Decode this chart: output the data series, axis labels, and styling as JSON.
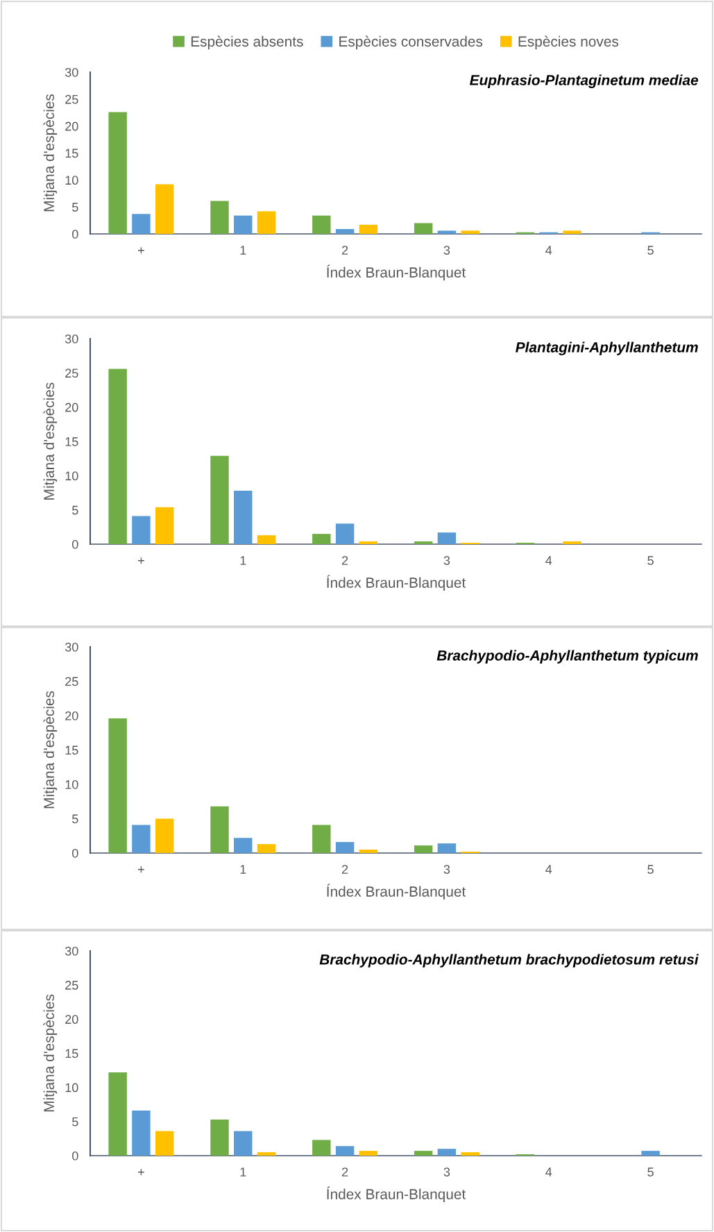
{
  "chart_data": [
    {
      "type": "bar",
      "title": "Euphrasio-Plantaginetum mediae",
      "xlabel": "Índex Braun-Blanquet",
      "ylabel": "Mitjana d'espècies",
      "categories": [
        "+",
        "1",
        "2",
        "3",
        "4",
        "5"
      ],
      "ylim": [
        0,
        30
      ],
      "yticks": [
        0,
        5,
        10,
        15,
        20,
        25,
        30
      ],
      "legend": "top",
      "series": [
        {
          "name": "Espècies absents",
          "color": "#70ad47",
          "values": [
            22.6,
            6.1,
            3.4,
            2.0,
            0.3,
            0.0
          ]
        },
        {
          "name": "Espècies conservades",
          "color": "#5b9bd5",
          "values": [
            3.7,
            3.4,
            0.9,
            0.6,
            0.3,
            0.3
          ]
        },
        {
          "name": "Espècies noves",
          "color": "#ffc000",
          "values": [
            9.2,
            4.2,
            1.7,
            0.6,
            0.6,
            0.0
          ]
        }
      ]
    },
    {
      "type": "bar",
      "title": "Plantagini-Aphyllanthetum",
      "xlabel": "Índex Braun-Blanquet",
      "ylabel": "Mitjana d'espècies",
      "categories": [
        "+",
        "1",
        "2",
        "3",
        "4",
        "5"
      ],
      "ylim": [
        0,
        30
      ],
      "yticks": [
        0,
        5,
        10,
        15,
        20,
        25,
        30
      ],
      "series": [
        {
          "color": "#70ad47",
          "values": [
            25.6,
            12.9,
            1.5,
            0.4,
            0.2,
            0.0
          ]
        },
        {
          "color": "#5b9bd5",
          "values": [
            4.1,
            7.8,
            3.0,
            1.7,
            0.0,
            0.0
          ]
        },
        {
          "color": "#ffc000",
          "values": [
            5.4,
            1.3,
            0.4,
            0.2,
            0.4,
            0.0
          ]
        }
      ]
    },
    {
      "type": "bar",
      "title": "Brachypodio-Aphyllanthetum typicum",
      "xlabel": "Índex Braun-Blanquet",
      "ylabel": "Mitjana d'espècies",
      "categories": [
        "+",
        "1",
        "2",
        "3",
        "4",
        "5"
      ],
      "ylim": [
        0,
        30
      ],
      "yticks": [
        0,
        5,
        10,
        15,
        20,
        25,
        30
      ],
      "series": [
        {
          "color": "#70ad47",
          "values": [
            19.6,
            6.8,
            4.1,
            1.1,
            0.0,
            0.0
          ]
        },
        {
          "color": "#5b9bd5",
          "values": [
            4.1,
            2.2,
            1.6,
            1.4,
            0.0,
            0.0
          ]
        },
        {
          "color": "#ffc000",
          "values": [
            5.0,
            1.3,
            0.5,
            0.2,
            0.0,
            0.0
          ]
        }
      ]
    },
    {
      "type": "bar",
      "title": "Brachypodio-Aphyllanthetum brachypodietosum retusi",
      "xlabel": "Índex Braun-Blanquet",
      "ylabel": "Mitjana d'espècies",
      "categories": [
        "+",
        "1",
        "2",
        "3",
        "4",
        "5"
      ],
      "ylim": [
        0,
        30
      ],
      "yticks": [
        0,
        5,
        10,
        15,
        20,
        25,
        30
      ],
      "series": [
        {
          "color": "#70ad47",
          "values": [
            12.2,
            5.3,
            2.3,
            0.7,
            0.2,
            0.0
          ]
        },
        {
          "color": "#5b9bd5",
          "values": [
            6.6,
            3.6,
            1.4,
            1.0,
            0.0,
            0.7
          ]
        },
        {
          "color": "#ffc000",
          "values": [
            3.6,
            0.5,
            0.7,
            0.5,
            0.0,
            0.0
          ]
        }
      ]
    }
  ]
}
